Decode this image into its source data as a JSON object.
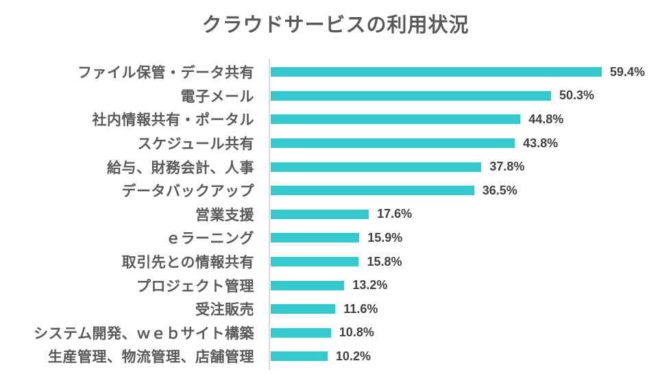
{
  "chart_data": {
    "type": "bar",
    "orientation": "horizontal",
    "title": "クラウドサービスの利用状況",
    "categories": [
      "ファイル保管・データ共有",
      "電子メール",
      "社内情報共有・ポータル",
      "スケジュール共有",
      "給与、財務会計、人事",
      "データバックアップ",
      "営業支援",
      "ｅラーニング",
      "取引先との情報共有",
      "プロジェクト管理",
      "受注販売",
      "システム開発、ｗｅｂサイト構築",
      "生産管理、物流管理、店舗管理"
    ],
    "values": [
      59.4,
      50.3,
      44.8,
      43.8,
      37.8,
      36.5,
      17.6,
      15.9,
      15.8,
      13.2,
      11.6,
      10.8,
      10.2
    ],
    "value_labels": [
      "59.4%",
      "50.3%",
      "44.8%",
      "43.8%",
      "37.8%",
      "36.5%",
      "17.6%",
      "15.9%",
      "15.8%",
      "13.2%",
      "11.6%",
      "10.8%",
      "10.2%"
    ],
    "xlabel": "",
    "ylabel": "",
    "xlim": [
      0,
      65
    ],
    "grid": false,
    "legend": "none",
    "data_labels": "outside-end",
    "colors": {
      "bar": "#34C9CC",
      "title_text": "#595959",
      "category_text": "#595959",
      "value_text": "#404040",
      "axis_line": "#D9D9D9",
      "background": "#FFFFFF"
    }
  }
}
